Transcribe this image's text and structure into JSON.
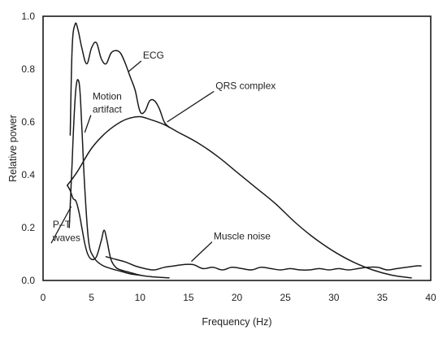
{
  "chart_data": {
    "type": "line",
    "xlabel": "Frequency (Hz)",
    "ylabel": "Relative power",
    "xlim": [
      0,
      40
    ],
    "ylim": [
      0,
      1.0
    ],
    "x_ticks": [
      "0",
      "5",
      "10",
      "15",
      "20",
      "25",
      "30",
      "35",
      "40"
    ],
    "y_ticks": [
      "0.0",
      "0.2",
      "0.4",
      "0.6",
      "0.8",
      "1.0"
    ],
    "grid": false,
    "legend": "none",
    "series": [
      {
        "name": "ECG",
        "x": [
          2.8,
          3.0,
          3.3,
          3.6,
          4.0,
          4.5,
          5.0,
          5.5,
          6.0,
          6.5,
          7.0,
          7.5,
          8.0,
          8.5,
          9.0,
          9.5,
          10.0,
          10.5,
          11.0,
          11.5,
          12.0,
          12.5,
          13.0
        ],
        "y": [
          0.55,
          0.88,
          0.97,
          0.95,
          0.88,
          0.82,
          0.88,
          0.9,
          0.84,
          0.82,
          0.86,
          0.87,
          0.86,
          0.82,
          0.77,
          0.72,
          0.64,
          0.64,
          0.68,
          0.68,
          0.65,
          0.6,
          0.58
        ]
      },
      {
        "name": "QRS complex",
        "x": [
          2.5,
          3.5,
          5.0,
          6.5,
          8.0,
          9.0,
          10.0,
          11.0,
          12.5,
          14.0,
          16.0,
          18.0,
          20.0,
          22.0,
          24.0,
          26.0,
          28.0,
          30.0,
          32.0,
          34.0,
          36.0,
          38.0
        ],
        "y": [
          0.36,
          0.41,
          0.5,
          0.56,
          0.6,
          0.615,
          0.62,
          0.61,
          0.59,
          0.56,
          0.52,
          0.47,
          0.41,
          0.35,
          0.29,
          0.22,
          0.16,
          0.11,
          0.07,
          0.04,
          0.02,
          0.01
        ]
      },
      {
        "name": "Motion artifact",
        "x": [
          2.7,
          3.0,
          3.2,
          3.4,
          3.6,
          3.8,
          4.0,
          4.3,
          4.7,
          5.2,
          6.0,
          7.0,
          8.0,
          9.0,
          10.0
        ],
        "y": [
          0.2,
          0.45,
          0.62,
          0.73,
          0.76,
          0.72,
          0.58,
          0.35,
          0.15,
          0.09,
          0.06,
          0.045,
          0.035,
          0.025,
          0.02
        ]
      },
      {
        "name": "P-T waves",
        "x": [
          2.5,
          2.8,
          3.1,
          3.4,
          3.7,
          4.0,
          4.3,
          4.6,
          5.0,
          5.5,
          6.0,
          6.3,
          6.6,
          7.0,
          7.5,
          8.0,
          9.0,
          10.0,
          11.0,
          12.0,
          13.0
        ],
        "y": [
          0.36,
          0.34,
          0.31,
          0.3,
          0.26,
          0.2,
          0.14,
          0.1,
          0.08,
          0.09,
          0.15,
          0.19,
          0.15,
          0.08,
          0.05,
          0.04,
          0.03,
          0.02,
          0.015,
          0.012,
          0.01
        ]
      },
      {
        "name": "Muscle noise",
        "x": [
          6.5,
          7.5,
          8.5,
          9.5,
          10.5,
          11.5,
          12.5,
          13.5,
          14.5,
          15.5,
          16.5,
          17.5,
          18.5,
          19.5,
          20.5,
          21.5,
          22.5,
          23.5,
          24.5,
          25.5,
          26.5,
          27.5,
          28.5,
          29.5,
          30.5,
          31.5,
          32.5,
          33.5,
          34.5,
          35.5,
          36.5,
          37.5,
          38.5,
          39.0
        ],
        "y": [
          0.09,
          0.08,
          0.07,
          0.055,
          0.045,
          0.04,
          0.05,
          0.055,
          0.06,
          0.06,
          0.045,
          0.05,
          0.04,
          0.05,
          0.045,
          0.04,
          0.05,
          0.045,
          0.04,
          0.045,
          0.04,
          0.04,
          0.045,
          0.04,
          0.045,
          0.04,
          0.045,
          0.05,
          0.05,
          0.04,
          0.045,
          0.05,
          0.055,
          0.055
        ]
      }
    ],
    "annotations": [
      {
        "text": "ECG",
        "x": 10.3,
        "y": 0.84,
        "pointer_to": [
          8.8,
          0.79
        ]
      },
      {
        "text": "QRS complex",
        "x": 17.8,
        "y": 0.725,
        "pointer_to": [
          12.8,
          0.6
        ]
      },
      {
        "text": "Motion",
        "x": 5.1,
        "y": 0.685,
        "pointer_to": null
      },
      {
        "text": "artifact",
        "x": 5.1,
        "y": 0.635,
        "pointer_to": [
          4.3,
          0.56
        ]
      },
      {
        "text": "Muscle noise",
        "x": 17.6,
        "y": 0.155,
        "pointer_to": [
          15.3,
          0.072
        ]
      },
      {
        "text": "P–T",
        "x": 1.0,
        "y": 0.2,
        "pointer_to": null
      },
      {
        "text": "waves",
        "x": 1.0,
        "y": 0.15,
        "pointer_to": [
          2.9,
          0.28
        ]
      }
    ]
  }
}
